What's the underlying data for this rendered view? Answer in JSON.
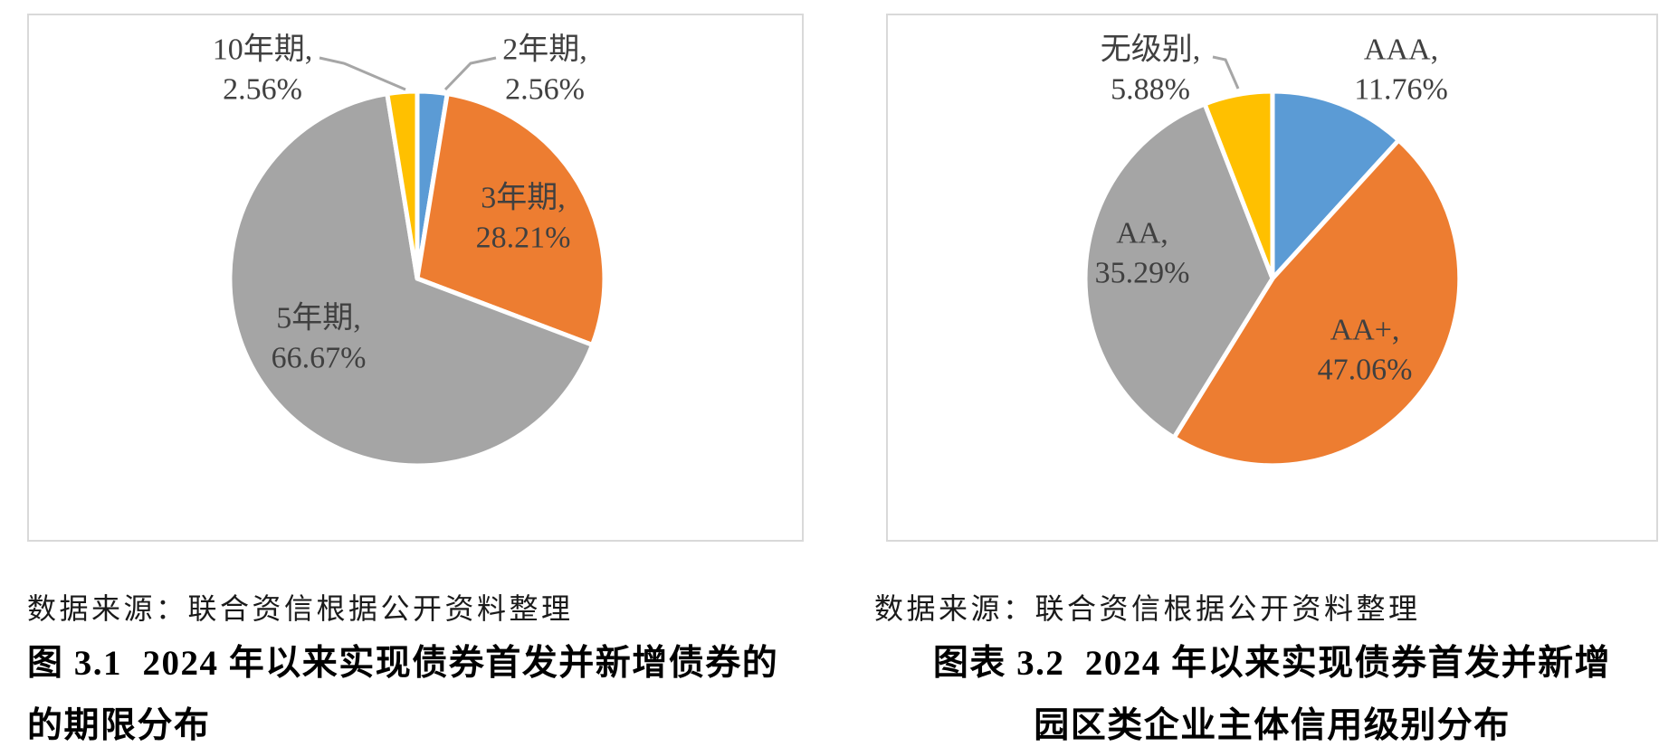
{
  "page": {
    "background": "#ffffff"
  },
  "palette": {
    "blue": "#5B9BD5",
    "orange": "#ED7D31",
    "gray": "#A5A5A5",
    "yellow": "#FFC000",
    "leader_line": "#A6A6A6",
    "label_text": "#404040",
    "panel_border": "#D9D9D9"
  },
  "chart_data": [
    {
      "type": "pie",
      "title": "图 3.1 2024 年以来实现债券首发并新增债券的的期限分布",
      "source_note": "数据来源：联合资信根据公开资料整理",
      "caption": {
        "line1": "图 3.1  2024 年以来实现债券首发并新增债券的",
        "line2": "的期限分布"
      },
      "direction": "clockwise",
      "start_angle_deg": 0,
      "legend": "none",
      "categories": [
        "2年期",
        "3年期",
        "5年期",
        "10年期"
      ],
      "values": [
        2.56,
        28.21,
        66.67,
        2.56
      ],
      "slices": [
        {
          "label": "2年期",
          "value": 2.56,
          "label_line1": "2年期,",
          "label_line2": "2.56%",
          "color_key": "blue",
          "label_placement": "outside"
        },
        {
          "label": "3年期",
          "value": 28.21,
          "label_line1": "3年期,",
          "label_line2": "28.21%",
          "color_key": "orange",
          "label_placement": "inside"
        },
        {
          "label": "5年期",
          "value": 66.67,
          "label_line1": "5年期,",
          "label_line2": "66.67%",
          "color_key": "gray",
          "label_placement": "inside"
        },
        {
          "label": "10年期",
          "value": 2.56,
          "label_line1": "10年期,",
          "label_line2": "2.56%",
          "color_key": "yellow",
          "label_placement": "outside"
        }
      ]
    },
    {
      "type": "pie",
      "title": "图表 3.2 2024 年以来实现债券首发并新增园区类企业主体信用级别分布",
      "source_note": "数据来源：联合资信根据公开资料整理",
      "caption": {
        "line1": "图表 3.2  2024 年以来实现债券首发并新增",
        "line2": "园区类企业主体信用级别分布"
      },
      "direction": "clockwise",
      "start_angle_deg": 0,
      "legend": "none",
      "categories": [
        "AAA",
        "AA+",
        "AA",
        "无级别"
      ],
      "values": [
        11.76,
        47.06,
        35.29,
        5.88
      ],
      "slices": [
        {
          "label": "AAA",
          "value": 11.76,
          "label_line1": "AAA,",
          "label_line2": "11.76%",
          "color_key": "blue",
          "label_placement": "outside"
        },
        {
          "label": "AA+",
          "value": 47.06,
          "label_line1": "AA+,",
          "label_line2": "47.06%",
          "color_key": "orange",
          "label_placement": "inside"
        },
        {
          "label": "AA",
          "value": 35.29,
          "label_line1": "AA,",
          "label_line2": "35.29%",
          "color_key": "gray",
          "label_placement": "inside"
        },
        {
          "label": "无级别",
          "value": 5.88,
          "label_line1": "无级别,",
          "label_line2": "5.88%",
          "color_key": "yellow",
          "label_placement": "outside"
        }
      ]
    }
  ]
}
